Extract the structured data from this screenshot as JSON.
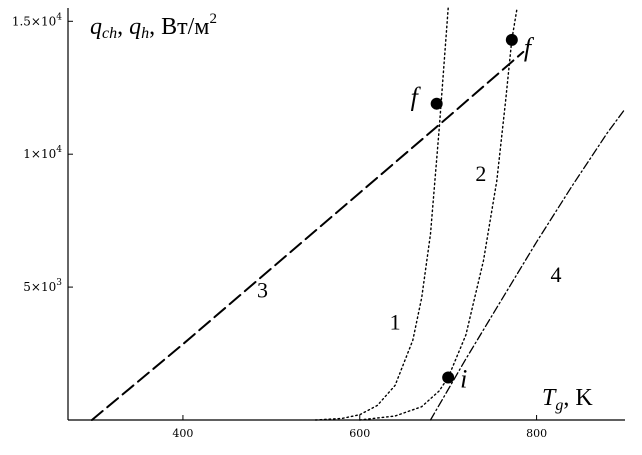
{
  "chart_data": {
    "type": "line",
    "title": "",
    "x_axis": {
      "label_symbol": "T",
      "label_subscript": "g",
      "label_unit": ", K",
      "range": [
        270,
        900
      ],
      "ticks": [
        {
          "value": 400,
          "label": "400"
        },
        {
          "value": 600,
          "label": "600"
        },
        {
          "value": 800,
          "label": "800"
        }
      ]
    },
    "y_axis": {
      "label_parts": [
        "q",
        "ch",
        ", ",
        "q",
        "h",
        ", Вт/м",
        "2"
      ],
      "range": [
        0,
        15500
      ],
      "ticks": [
        {
          "value": 5000,
          "mantissa": "5×10",
          "exponent": "3"
        },
        {
          "value": 10000,
          "mantissa": "1×10",
          "exponent": "4"
        },
        {
          "value": 15000,
          "mantissa": "1.5×10",
          "exponent": "4"
        }
      ]
    },
    "grid": false,
    "series": [
      {
        "name": "1",
        "style": "dotted",
        "x": [
          550,
          580,
          600,
          620,
          640,
          660,
          670,
          680,
          690,
          700
        ],
        "y": [
          0,
          60,
          200,
          550,
          1300,
          3000,
          4600,
          7000,
          11000,
          15500
        ]
      },
      {
        "name": "2",
        "style": "dotted",
        "x": [
          600,
          640,
          670,
          690,
          700,
          720,
          740,
          755,
          765,
          772,
          778
        ],
        "y": [
          0,
          150,
          500,
          1100,
          1600,
          3200,
          6000,
          9000,
          12000,
          14300,
          15500
        ]
      },
      {
        "name": "3",
        "style": "dashed",
        "x": [
          297,
          400,
          500,
          600,
          700,
          785
        ],
        "y": [
          0,
          2850,
          5700,
          8550,
          11400,
          13850
        ]
      },
      {
        "name": "4",
        "style": "dash-dot",
        "x": [
          680,
          720,
          760,
          800,
          840,
          880,
          900
        ],
        "y": [
          0,
          2300,
          4500,
          6700,
          8800,
          10800,
          11700
        ]
      }
    ],
    "points": [
      {
        "label": "f",
        "x": 687,
        "y": 11900,
        "curve": "1"
      },
      {
        "label": "f",
        "x": 772,
        "y": 14300,
        "curve": "2"
      },
      {
        "label": "i",
        "x": 700,
        "y": 1600,
        "curve": "2"
      }
    ],
    "curve_labels": [
      {
        "text": "1",
        "x": 640,
        "y": 3400
      },
      {
        "text": "2",
        "x": 737,
        "y": 9000
      },
      {
        "text": "3",
        "x": 490,
        "y": 4600
      },
      {
        "text": "4",
        "x": 822,
        "y": 5200
      }
    ]
  }
}
